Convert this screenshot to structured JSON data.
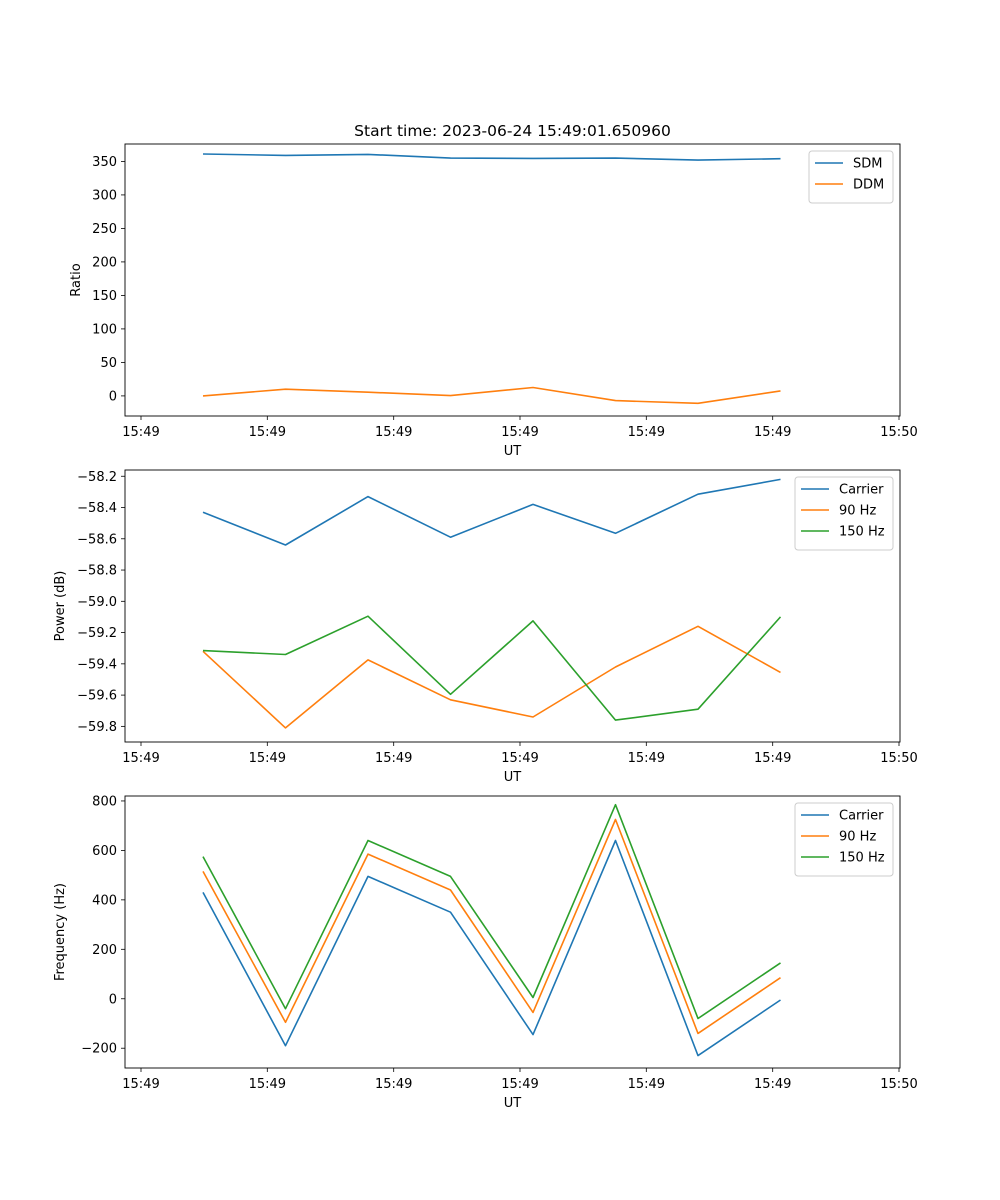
{
  "figure": {
    "title": "Start time: 2023-06-24 15:49:01.650960"
  },
  "chart_data": [
    {
      "type": "line",
      "xlabel": "UT",
      "ylabel": "Ratio",
      "x_ticks": [
        "15:49",
        "15:49",
        "15:49",
        "15:49",
        "15:49",
        "15:49",
        "15:50"
      ],
      "y_ticks": [
        0,
        50,
        100,
        150,
        200,
        250,
        300,
        350
      ],
      "ylim": [
        -30,
        376
      ],
      "x": [
        1,
        2,
        3,
        4,
        5,
        6,
        7,
        8
      ],
      "series": [
        {
          "name": "SDM",
          "color": "#1f77b4",
          "values": [
            361,
            359,
            360.5,
            355,
            354.5,
            355,
            352,
            354
          ]
        },
        {
          "name": "DDM",
          "color": "#ff7f0e",
          "values": [
            0,
            10,
            5.5,
            0.5,
            12.5,
            -7,
            -11,
            7.5
          ]
        }
      ],
      "legend": "top-right"
    },
    {
      "type": "line",
      "xlabel": "UT",
      "ylabel": "Power (dB)",
      "x_ticks": [
        "15:49",
        "15:49",
        "15:49",
        "15:49",
        "15:49",
        "15:49",
        "15:50"
      ],
      "y_ticks": [
        "-58.2",
        "-58.4",
        "-58.6",
        "-58.8",
        "-59.0",
        "-59.2",
        "-59.4",
        "-59.6",
        "-59.8"
      ],
      "ylim": [
        -59.9,
        -58.16
      ],
      "x": [
        1,
        2,
        3,
        4,
        5,
        6,
        7,
        8
      ],
      "series": [
        {
          "name": "Carrier",
          "color": "#1f77b4",
          "values": [
            -58.43,
            -58.64,
            -58.33,
            -58.59,
            -58.38,
            -58.565,
            -58.315,
            -58.22
          ]
        },
        {
          "name": "90 Hz",
          "color": "#ff7f0e",
          "values": [
            -59.32,
            -59.81,
            -59.375,
            -59.63,
            -59.74,
            -59.42,
            -59.16,
            -59.455
          ]
        },
        {
          "name": "150 Hz",
          "color": "#2ca02c",
          "values": [
            -59.315,
            -59.34,
            -59.095,
            -59.595,
            -59.125,
            -59.76,
            -59.69,
            -59.1
          ]
        }
      ],
      "legend": "top-right"
    },
    {
      "type": "line",
      "xlabel": "UT",
      "ylabel": "Frequency (Hz)",
      "x_ticks": [
        "15:49",
        "15:49",
        "15:49",
        "15:49",
        "15:49",
        "15:49",
        "15:50"
      ],
      "y_ticks": [
        -200,
        0,
        200,
        400,
        600,
        800
      ],
      "ylim": [
        -280,
        820
      ],
      "x": [
        1,
        2,
        3,
        4,
        5,
        6,
        7,
        8
      ],
      "series": [
        {
          "name": "Carrier",
          "color": "#1f77b4",
          "values": [
            430,
            -190,
            495,
            350,
            -145,
            640,
            -230,
            -5
          ]
        },
        {
          "name": "90 Hz",
          "color": "#ff7f0e",
          "values": [
            515,
            -95,
            585,
            440,
            -55,
            725,
            -140,
            85
          ]
        },
        {
          "name": "150 Hz",
          "color": "#2ca02c",
          "values": [
            575,
            -40,
            640,
            495,
            5,
            785,
            -80,
            145
          ]
        }
      ],
      "legend": "top-right"
    }
  ]
}
